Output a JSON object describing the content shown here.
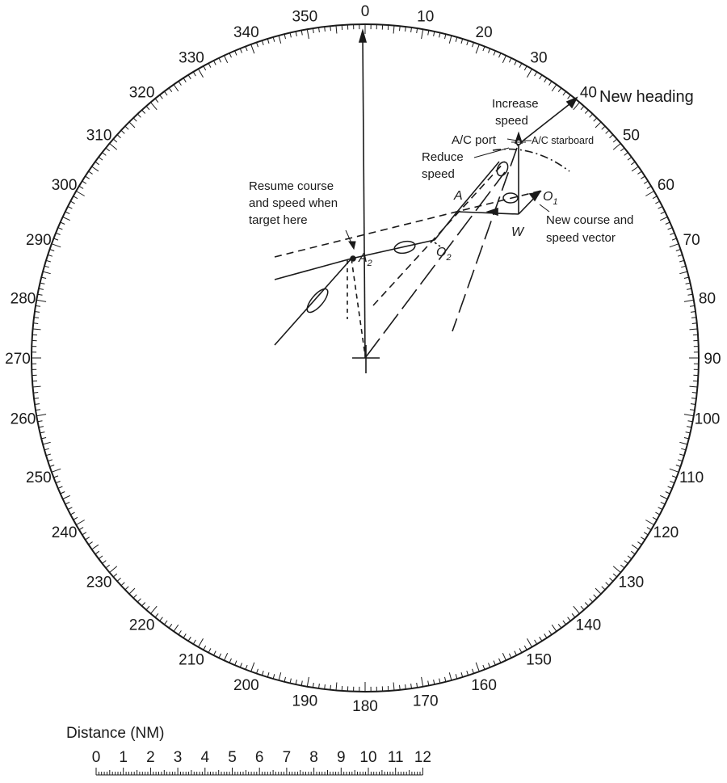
{
  "bearing_labels": [
    "0",
    "10",
    "20",
    "30",
    "40",
    "50",
    "60",
    "70",
    "80",
    "90",
    "100",
    "110",
    "120",
    "130",
    "140",
    "150",
    "160",
    "170",
    "180",
    "190",
    "200",
    "210",
    "220",
    "230",
    "240",
    "250",
    "260",
    "270",
    "280",
    "290",
    "300",
    "310",
    "320",
    "330",
    "340",
    "350"
  ],
  "annotations": {
    "new_heading": "New heading",
    "increase": "Increase",
    "speed": "speed",
    "ac_port": "A/C port",
    "ac_starboard": "A/C starboard",
    "reduce": "Reduce",
    "reduce_speed": "speed",
    "resume_line1": "Resume course",
    "resume_line2": "and speed when",
    "resume_line3": "target here",
    "new_course_line1": "New course and",
    "new_course_line2": "speed vector"
  },
  "points": {
    "A": "A",
    "W": "W",
    "O1_base": "O",
    "O1_sub": "1",
    "O2_base": "O",
    "O2_sub": "2",
    "A2_base": "A",
    "A2_sub": "2"
  },
  "scale": {
    "title": "Distance (NM)",
    "labels": [
      "0",
      "1",
      "2",
      "3",
      "4",
      "5",
      "6",
      "7",
      "8",
      "9",
      "10",
      "11",
      "12"
    ]
  }
}
